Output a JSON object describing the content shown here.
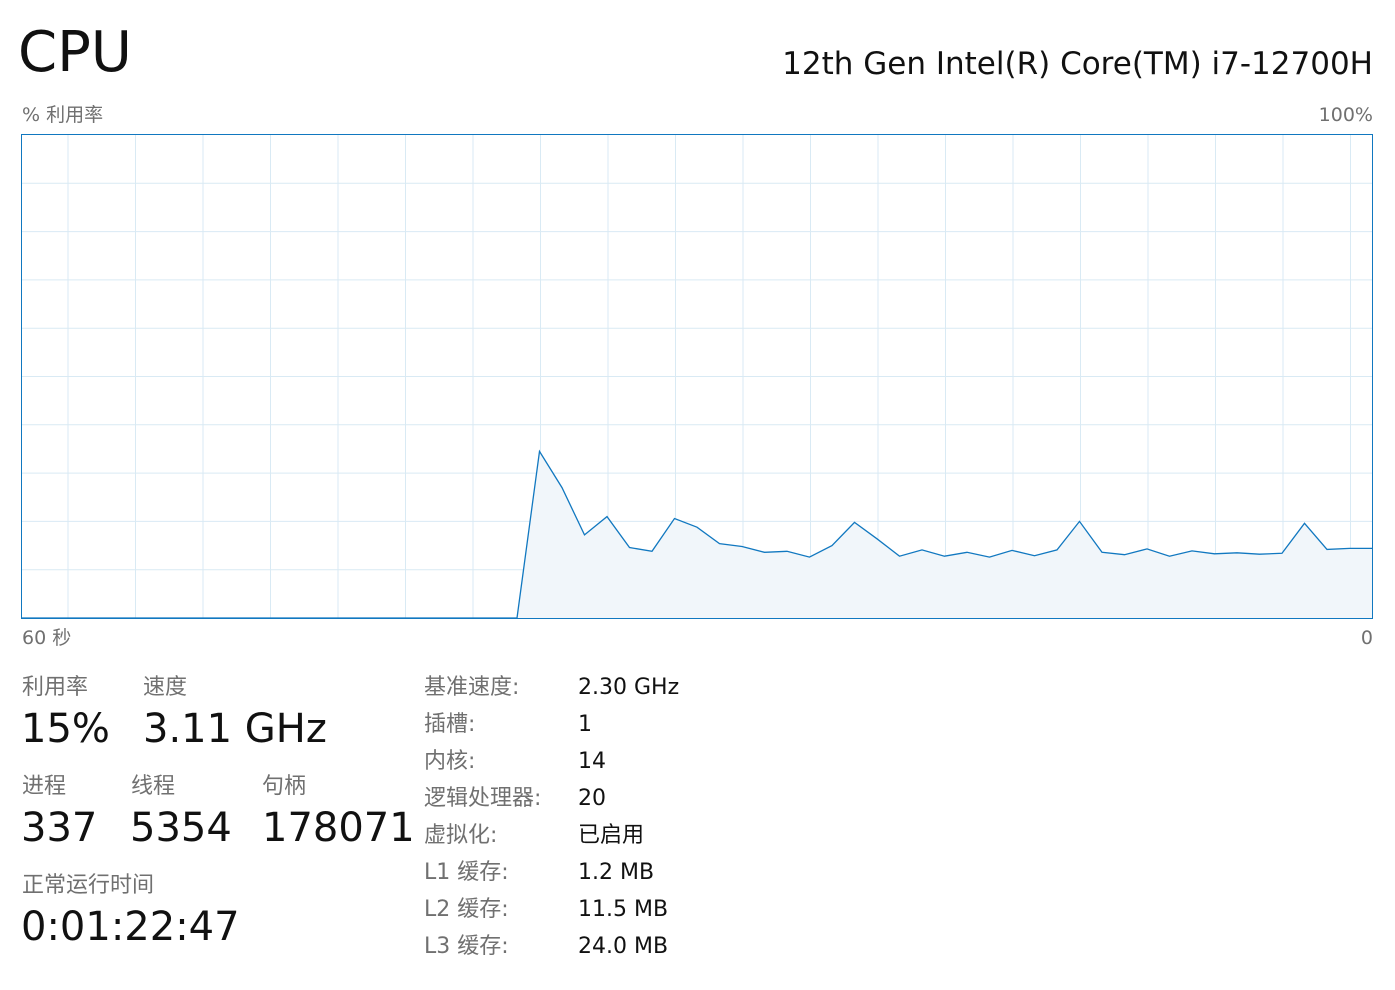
{
  "header": {
    "title": "CPU",
    "cpu_name": "12th Gen Intel(R) Core(TM) i7-12700H"
  },
  "graph": {
    "y_label": "% 利用率",
    "y_max_label": "100%",
    "x_left_label": "60 秒",
    "x_right_label": "0",
    "line_color": "#1178c0",
    "fill_color": "#f1f6fa",
    "grid_color": "#d9eaf4"
  },
  "chart_data": {
    "type": "area",
    "xlabel": "",
    "ylabel": "% 利用率",
    "xlim": [
      60,
      0
    ],
    "ylim": [
      0,
      100
    ],
    "grid": true,
    "x": [
      60,
      59,
      58,
      57,
      56,
      55,
      54,
      53,
      52,
      51,
      50,
      49,
      48,
      47,
      46,
      45,
      44,
      43,
      42,
      41,
      40,
      39,
      38,
      37,
      36,
      35,
      34,
      33,
      32,
      31,
      30,
      29,
      28,
      27,
      26,
      25,
      24,
      23,
      22,
      21,
      20,
      19,
      18,
      17,
      16,
      15,
      14,
      13,
      12,
      11,
      10,
      9,
      8,
      7,
      6,
      5,
      4,
      3,
      2,
      1,
      0
    ],
    "series": [
      {
        "values": [
          0,
          0,
          0,
          0,
          0,
          0,
          0,
          0,
          0,
          0,
          0,
          0,
          0,
          0,
          0,
          0,
          0,
          0,
          0,
          0,
          0,
          0,
          0,
          34.5,
          27,
          17.2,
          21,
          14.6,
          13.8,
          20.6,
          18.8,
          15.4,
          14.8,
          13.6,
          13.8,
          12.6,
          15,
          19.8,
          16.4,
          12.8,
          14.1,
          12.8,
          13.6,
          12.6,
          14,
          12.9,
          14.1,
          20,
          13.6,
          13.1,
          14.3,
          12.8,
          13.9,
          13.3,
          13.5,
          13.2,
          13.4,
          19.6,
          14.2,
          14.4,
          14.4
        ]
      }
    ]
  },
  "stats": {
    "utilization": {
      "label": "利用率",
      "value": "15%"
    },
    "speed": {
      "label": "速度",
      "value": "3.11 GHz"
    },
    "processes": {
      "label": "进程",
      "value": "337"
    },
    "threads": {
      "label": "线程",
      "value": "5354"
    },
    "handles": {
      "label": "句柄",
      "value": "178071"
    },
    "uptime": {
      "label": "正常运行时间",
      "value": "0:01:22:47"
    }
  },
  "specs": [
    {
      "key": "基准速度:",
      "value": "2.30 GHz"
    },
    {
      "key": "插槽:",
      "value": "1"
    },
    {
      "key": "内核:",
      "value": "14"
    },
    {
      "key": "逻辑处理器:",
      "value": "20"
    },
    {
      "key": "虚拟化:",
      "value": "已启用"
    },
    {
      "key": "L1 缓存:",
      "value": "1.2 MB"
    },
    {
      "key": "L2 缓存:",
      "value": "11.5 MB"
    },
    {
      "key": "L3 缓存:",
      "value": "24.0 MB"
    }
  ]
}
